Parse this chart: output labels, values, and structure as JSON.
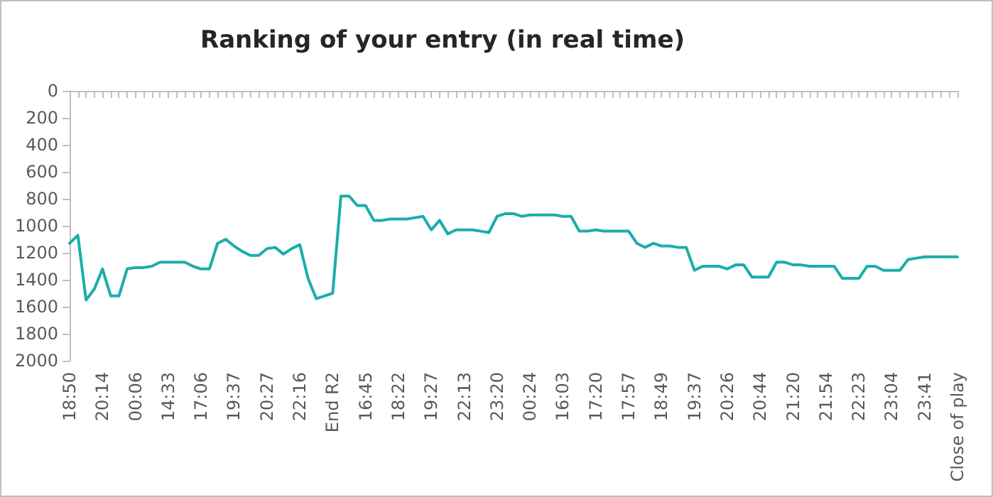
{
  "chart_data": {
    "type": "line",
    "title": "Ranking of your entry (in real time)",
    "categories": [
      "18:50",
      null,
      null,
      null,
      "20:14",
      null,
      null,
      null,
      "00:06",
      null,
      null,
      null,
      "14:33",
      null,
      null,
      null,
      "17:06",
      null,
      null,
      null,
      "19:37",
      null,
      null,
      null,
      "20:27",
      null,
      null,
      null,
      "22:16",
      null,
      null,
      null,
      "End R2",
      null,
      null,
      null,
      "16:45",
      null,
      null,
      null,
      "18:22",
      null,
      null,
      null,
      "19:27",
      null,
      null,
      null,
      "22:13",
      null,
      null,
      null,
      "23:20",
      null,
      null,
      null,
      "00:24",
      null,
      null,
      null,
      "16:03",
      null,
      null,
      null,
      "17:20",
      null,
      null,
      null,
      "17:57",
      null,
      null,
      null,
      "18:49",
      null,
      null,
      null,
      "19:37",
      null,
      null,
      null,
      "20:26",
      null,
      null,
      null,
      "20:44",
      null,
      null,
      null,
      "21:20",
      null,
      null,
      null,
      "21:54",
      null,
      null,
      null,
      "22:23",
      null,
      null,
      null,
      "23:04",
      null,
      null,
      null,
      "23:41",
      null,
      null,
      null,
      "Close of play"
    ],
    "series": [
      {
        "color": "#1aaeaa",
        "values": [
          1130,
          1070,
          1550,
          1470,
          1320,
          1520,
          1520,
          1320,
          1310,
          1310,
          1300,
          1270,
          1270,
          1270,
          1270,
          1300,
          1320,
          1320,
          1130,
          1100,
          1150,
          1190,
          1220,
          1220,
          1170,
          1160,
          1210,
          1170,
          1140,
          1390,
          1540,
          1520,
          1500,
          780,
          780,
          850,
          850,
          960,
          960,
          950,
          950,
          950,
          940,
          930,
          1030,
          960,
          1060,
          1030,
          1030,
          1030,
          1040,
          1050,
          930,
          910,
          910,
          930,
          920,
          920,
          920,
          920,
          930,
          930,
          1040,
          1040,
          1030,
          1040,
          1040,
          1040,
          1040,
          1130,
          1160,
          1130,
          1150,
          1150,
          1160,
          1160,
          1330,
          1300,
          1300,
          1300,
          1320,
          1290,
          1290,
          1380,
          1380,
          1380,
          1270,
          1270,
          1290,
          1290,
          1300,
          1300,
          1300,
          1300,
          1390,
          1390,
          1390,
          1300,
          1300,
          1330,
          1330,
          1330,
          1250,
          1240,
          1230,
          1230,
          1230,
          1230,
          1230
        ]
      }
    ],
    "ylim": [
      2000,
      0
    ],
    "yticks": [
      0,
      200,
      400,
      600,
      800,
      1000,
      1200,
      1400,
      1600,
      1800,
      2000
    ],
    "grid": false,
    "marker": "none",
    "line_style": "solid"
  }
}
